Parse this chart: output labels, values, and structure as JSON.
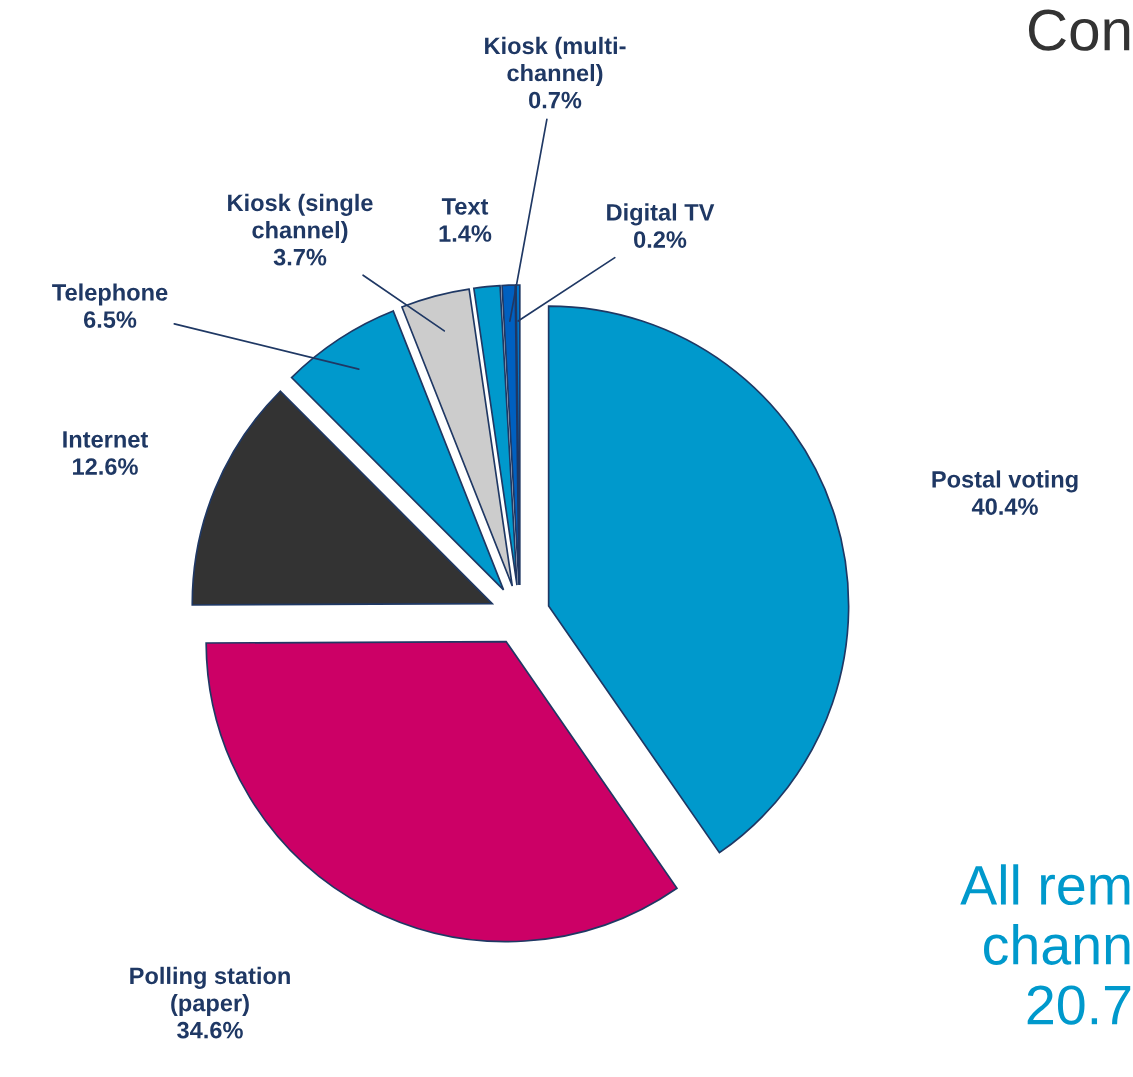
{
  "chart_data": {
    "type": "pie",
    "categories": [
      "Postal voting",
      "Polling station\n(paper)",
      "Internet",
      "Telephone",
      "Kiosk (single\nchannel)",
      "Text",
      "Kiosk (multi-\nchannel)",
      "Digital TV"
    ],
    "values": [
      40.4,
      34.6,
      12.6,
      6.5,
      3.7,
      1.4,
      0.7,
      0.2
    ],
    "colors": [
      "#0099cc",
      "#cc0066",
      "#333333",
      "#0099cc",
      "#cccccc",
      "#0099cc",
      "#0060c0",
      "#0077cc"
    ],
    "value_labels": [
      "40.4%",
      "34.6%",
      "12.6%",
      "6.5%",
      "3.7%",
      "1.4%",
      "0.7%",
      "0.2%"
    ],
    "annotations": [
      "Con",
      "All rem\nchann\n20.7"
    ]
  }
}
